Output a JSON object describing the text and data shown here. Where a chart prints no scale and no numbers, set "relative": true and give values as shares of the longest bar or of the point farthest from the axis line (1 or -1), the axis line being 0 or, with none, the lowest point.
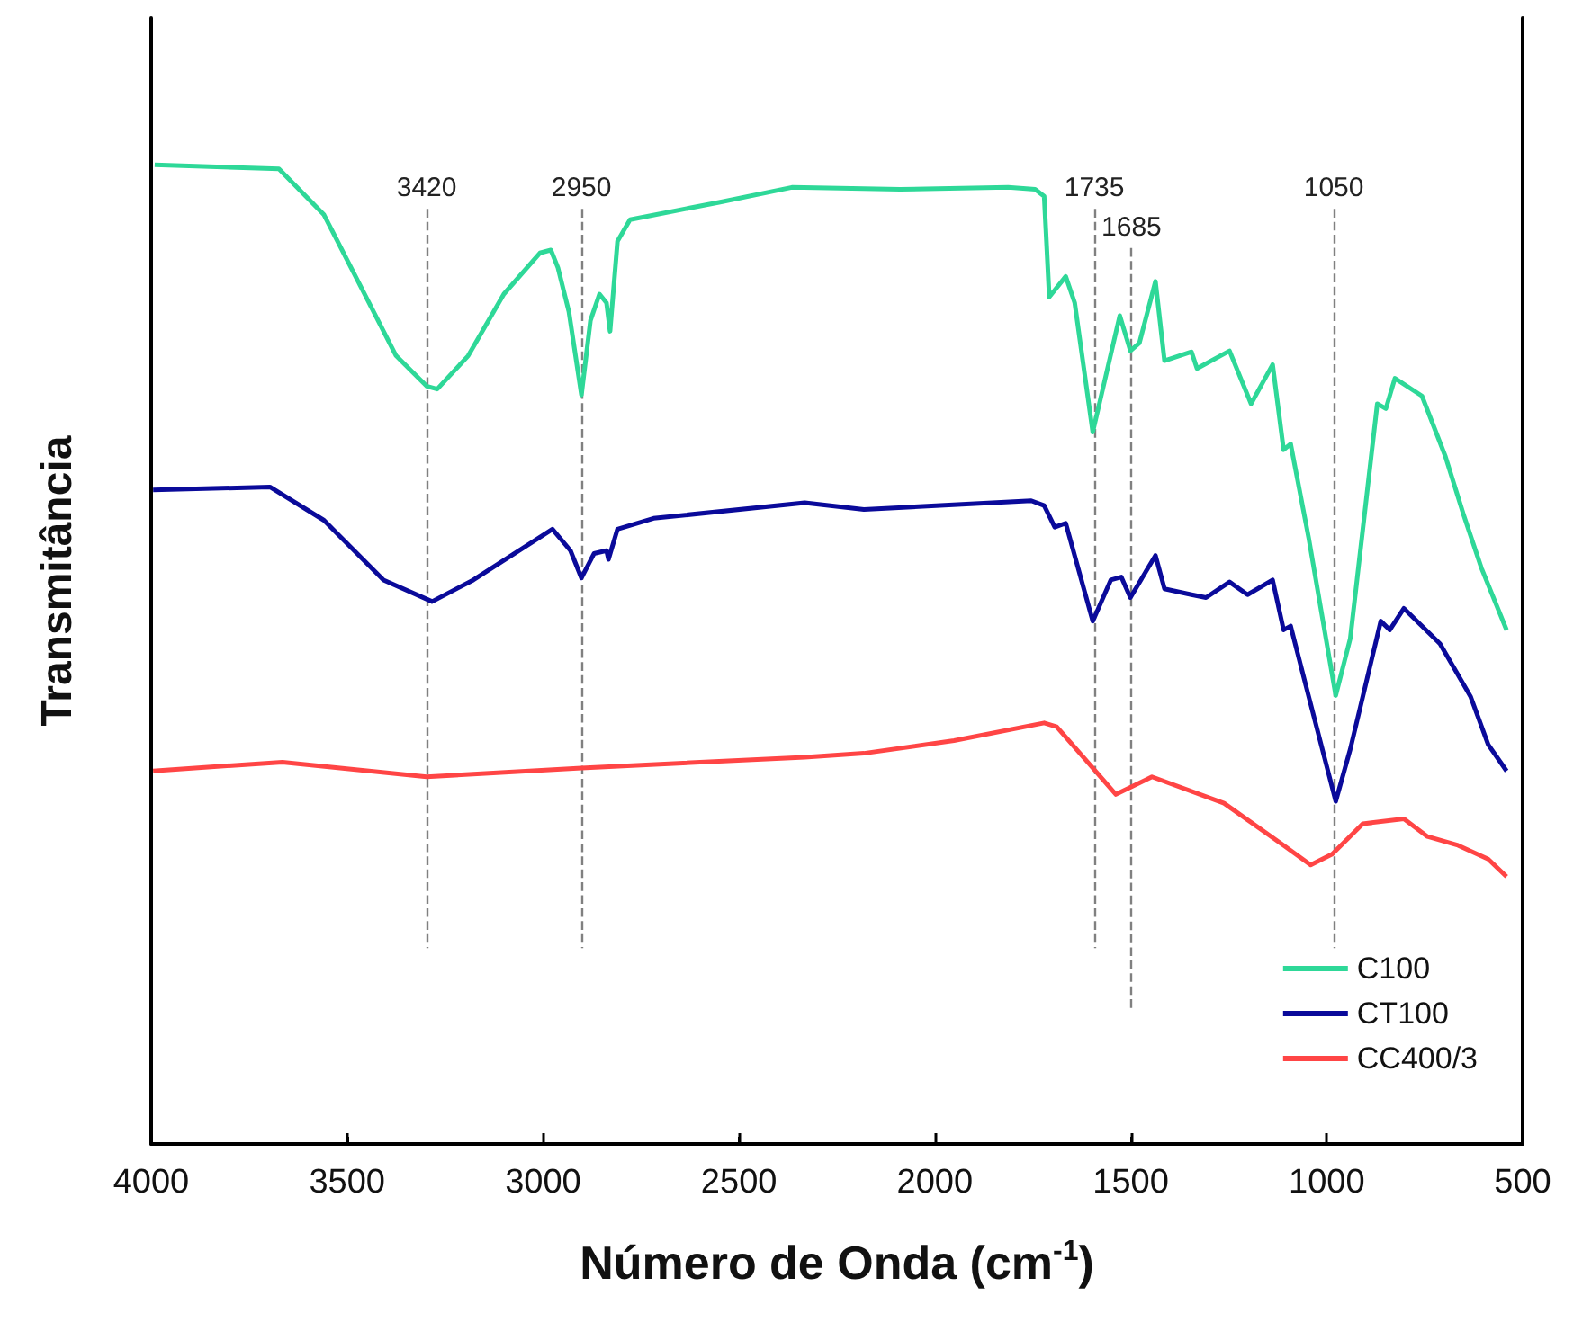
{
  "chart_data": {
    "type": "line",
    "relative": true,
    "xlabel": "Número de Onda (cm$^{-1}$)",
    "ylabel": "Transmitância",
    "xlim": [
      4000,
      500
    ],
    "xticks": [
      4000,
      3500,
      3000,
      2500,
      2000,
      1500,
      1000,
      500
    ],
    "legend": "bottom right",
    "marker": "none",
    "series": [
      {
        "name": "C100",
        "color": "#2ed898",
        "x": [
          3991,
          3674,
          3559,
          3467,
          3375,
          3297,
          3270,
          3191,
          3100,
          3008,
          2980,
          2962,
          2934,
          2902,
          2879,
          2856,
          2838,
          2829,
          2810,
          2778,
          2548,
          2365,
          2089,
          1813,
          1744,
          1721,
          1708,
          1666,
          1643,
          1597,
          1528,
          1501,
          1478,
          1437,
          1414,
          1345,
          1331,
          1248,
          1193,
          1138,
          1110,
          1092,
          1046,
          977,
          940,
          871,
          849,
          826,
          757,
          697,
          651,
          605,
          541
        ],
        "values": [
          1.0,
          0.996,
          0.949,
          0.877,
          0.805,
          0.774,
          0.771,
          0.805,
          0.868,
          0.91,
          0.913,
          0.895,
          0.85,
          0.765,
          0.841,
          0.868,
          0.859,
          0.83,
          0.922,
          0.944,
          0.962,
          0.977,
          0.975,
          0.977,
          0.975,
          0.968,
          0.865,
          0.886,
          0.859,
          0.727,
          0.846,
          0.81,
          0.818,
          0.881,
          0.8,
          0.809,
          0.792,
          0.81,
          0.756,
          0.796,
          0.709,
          0.715,
          0.619,
          0.458,
          0.516,
          0.756,
          0.751,
          0.782,
          0.764,
          0.702,
          0.643,
          0.588,
          0.525
        ]
      },
      {
        "name": "CT100",
        "color": "#0a0a9a",
        "x": [
          3995,
          3697,
          3559,
          3407,
          3283,
          3178,
          2976,
          2930,
          2902,
          2870,
          2838,
          2833,
          2810,
          2718,
          2332,
          2181,
          1754,
          1721,
          1694,
          1666,
          1597,
          1551,
          1524,
          1501,
          1437,
          1414,
          1345,
          1308,
          1248,
          1202,
          1138,
          1110,
          1092,
          1046,
          977,
          940,
          862,
          839,
          803,
          711,
          633,
          588,
          541
        ],
        "values": [
          0.668,
          0.671,
          0.637,
          0.576,
          0.554,
          0.576,
          0.628,
          0.606,
          0.578,
          0.603,
          0.606,
          0.597,
          0.628,
          0.639,
          0.655,
          0.648,
          0.657,
          0.652,
          0.63,
          0.634,
          0.534,
          0.576,
          0.579,
          0.558,
          0.601,
          0.567,
          0.561,
          0.558,
          0.574,
          0.561,
          0.576,
          0.525,
          0.529,
          0.457,
          0.35,
          0.403,
          0.534,
          0.525,
          0.547,
          0.511,
          0.457,
          0.408,
          0.381
        ]
      },
      {
        "name": "CC400/3",
        "color": "#ff4545",
        "x": [
          3995,
          3665,
          3297,
          2902,
          2332,
          2181,
          1951,
          1721,
          1689,
          1597,
          1538,
          1446,
          1262,
          1110,
          1041,
          986,
          908,
          803,
          743,
          665,
          588,
          541
        ],
        "values": [
          0.381,
          0.39,
          0.375,
          0.384,
          0.395,
          0.399,
          0.412,
          0.43,
          0.426,
          0.384,
          0.357,
          0.375,
          0.348,
          0.305,
          0.285,
          0.296,
          0.327,
          0.332,
          0.314,
          0.305,
          0.291,
          0.273
        ]
      }
    ],
    "ref_lines": [
      {
        "axis": "x",
        "value": 3297,
        "color": "#808080",
        "line_style": "dashed"
      },
      {
        "axis": "x",
        "value": 2902,
        "color": "#808080",
        "line_style": "dashed"
      },
      {
        "axis": "x",
        "value": 1593,
        "color": "#808080",
        "line_style": "dashed"
      },
      {
        "axis": "x",
        "value": 1498,
        "color": "#808080",
        "line_style": "dashed"
      },
      {
        "axis": "x",
        "value": 982,
        "color": "#808080",
        "line_style": "dashed"
      }
    ],
    "annotations": [
      "3420",
      "2950",
      "1735",
      "1685",
      "1050"
    ]
  }
}
